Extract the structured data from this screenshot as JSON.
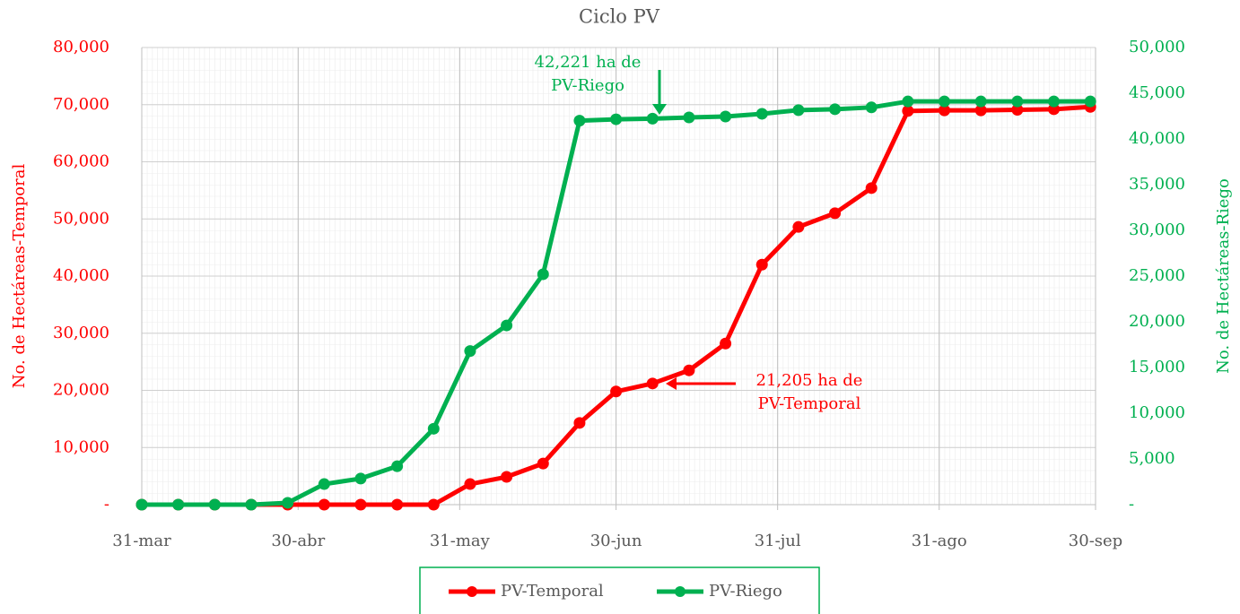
{
  "chart_data": {
    "type": "line",
    "title": "Ciclo PV",
    "ylabel": "No. de Hectáreas-Temporal",
    "y2label": "No. de Hectáreas-Riego",
    "x": [
      "31-mar",
      "7-abr",
      "14-abr",
      "21-abr",
      "28-abr",
      "5-may",
      "12-may",
      "19-may",
      "26-may",
      "2-jun",
      "9-jun",
      "16-jun",
      "23-jun",
      "30-jun",
      "7-jul",
      "14-jul",
      "21-jul",
      "28-jul",
      "4-ago",
      "11-ago",
      "18-ago",
      "25-ago",
      "1-sep",
      "8-sep",
      "15-sep",
      "22-sep",
      "29-sep"
    ],
    "xlim": [
      "31-mar",
      "30-sep"
    ],
    "xticks": [
      "31-mar",
      "30-abr",
      "31-may",
      "30-jun",
      "31-jul",
      "31-ago",
      "30-sep"
    ],
    "ylim": [
      0,
      80000
    ],
    "yticks": [
      {
        "value": 0,
        "label": "-"
      },
      {
        "value": 10000,
        "label": "10,000"
      },
      {
        "value": 20000,
        "label": "20,000"
      },
      {
        "value": 30000,
        "label": "30,000"
      },
      {
        "value": 40000,
        "label": "40,000"
      },
      {
        "value": 50000,
        "label": "50,000"
      },
      {
        "value": 60000,
        "label": "60,000"
      },
      {
        "value": 70000,
        "label": "70,000"
      },
      {
        "value": 80000,
        "label": "80,000"
      }
    ],
    "y2lim": [
      0,
      50000
    ],
    "y2ticks": [
      {
        "value": 0,
        "label": "-"
      },
      {
        "value": 5000,
        "label": "5,000"
      },
      {
        "value": 10000,
        "label": "10,000"
      },
      {
        "value": 15000,
        "label": "15,000"
      },
      {
        "value": 20000,
        "label": "20,000"
      },
      {
        "value": 25000,
        "label": "25,000"
      },
      {
        "value": 30000,
        "label": "30,000"
      },
      {
        "value": 35000,
        "label": "35,000"
      },
      {
        "value": 40000,
        "label": "40,000"
      },
      {
        "value": 45000,
        "label": "45,000"
      },
      {
        "value": 50000,
        "label": "50,000"
      }
    ],
    "grid": true,
    "legend": "bottom",
    "series": [
      {
        "name": "PV-Temporal",
        "color": "#ff0000",
        "axis": "y",
        "values": [
          0,
          0,
          0,
          0,
          0,
          0,
          0,
          0,
          0,
          3600,
          4860,
          7200,
          14300,
          19800,
          21205,
          23500,
          28200,
          42000,
          48600,
          51000,
          55400,
          68900,
          69000,
          69000,
          69100,
          69200,
          69600
        ]
      },
      {
        "name": "PV-Riego",
        "color": "#00b050",
        "axis": "y2",
        "values": [
          0,
          0,
          0,
          0,
          200,
          2250,
          2850,
          4200,
          8300,
          16800,
          19600,
          25200,
          42000,
          42150,
          42221,
          42350,
          42450,
          42750,
          43150,
          43250,
          43450,
          44100,
          44100,
          44100,
          44100,
          44100,
          44100
        ]
      }
    ],
    "annotations": [
      {
        "lines": [
          "42,221 ha de",
          "PV-Riego"
        ],
        "color": "#00b050"
      },
      {
        "lines": [
          "21,205 ha de",
          "PV-Temporal"
        ],
        "color": "#ff0000"
      }
    ]
  }
}
